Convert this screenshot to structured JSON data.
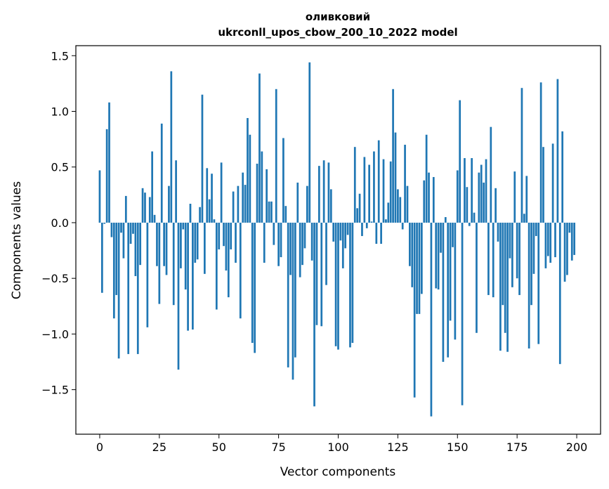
{
  "chart_data": {
    "type": "bar",
    "title": "оливковий",
    "subtitle": "ukrconll_upos_cbow_200_10_2022 model",
    "xlabel": "Vector components",
    "ylabel": "Components values",
    "xlim": [
      -10,
      210
    ],
    "ylim": [
      -1.9,
      1.59
    ],
    "xticks": [
      0,
      25,
      50,
      75,
      100,
      125,
      150,
      175,
      200
    ],
    "xtick_labels": [
      "0",
      "25",
      "50",
      "75",
      "100",
      "125",
      "150",
      "175",
      "200"
    ],
    "yticks": [
      -1.5,
      -1.0,
      -0.5,
      0.0,
      0.5,
      1.0,
      1.5
    ],
    "ytick_labels": [
      "−1.5",
      "−1.0",
      "−0.5",
      "0.0",
      "0.5",
      "1.0",
      "1.5"
    ],
    "grid": false,
    "bar_color": "#1f77b4",
    "values": [
      0.47,
      -0.63,
      -0.01,
      0.84,
      1.08,
      -0.13,
      -0.86,
      -0.65,
      -1.22,
      -0.09,
      -0.32,
      0.24,
      -1.18,
      -0.19,
      -0.1,
      -0.48,
      -1.18,
      -0.38,
      0.31,
      0.27,
      -0.94,
      0.23,
      0.64,
      0.07,
      -0.39,
      -0.73,
      0.89,
      -0.39,
      -0.47,
      0.33,
      1.36,
      -0.74,
      0.56,
      -1.32,
      -0.41,
      -0.06,
      -0.6,
      -0.97,
      0.17,
      -0.96,
      -0.36,
      -0.33,
      0.14,
      1.15,
      -0.46,
      0.49,
      0.21,
      0.44,
      0.03,
      -0.78,
      -0.24,
      0.54,
      -0.21,
      -0.43,
      -0.67,
      -0.24,
      0.28,
      -0.36,
      0.33,
      -0.86,
      0.45,
      0.34,
      0.94,
      0.79,
      -1.08,
      -1.17,
      0.53,
      1.34,
      0.64,
      -0.36,
      0.48,
      0.19,
      0.19,
      -0.2,
      1.2,
      -0.39,
      -0.31,
      0.76,
      0.15,
      -1.3,
      -0.47,
      -1.41,
      -1.21,
      0.36,
      -0.49,
      -0.38,
      -0.23,
      0.33,
      1.44,
      -0.34,
      -1.65,
      -0.92,
      0.51,
      -0.93,
      0.56,
      -0.56,
      0.54,
      0.3,
      -0.17,
      -1.11,
      -1.14,
      -0.16,
      -0.41,
      -0.23,
      -0.11,
      -1.12,
      -1.08,
      0.68,
      0.13,
      0.26,
      -0.12,
      0.59,
      -0.05,
      0.52,
      0.01,
      0.64,
      -0.19,
      0.74,
      -0.19,
      0.57,
      0.03,
      0.18,
      0.55,
      1.2,
      0.81,
      0.3,
      0.23,
      -0.06,
      0.7,
      0.33,
      -0.39,
      -0.58,
      -1.57,
      -0.82,
      -0.82,
      -0.64,
      0.38,
      0.79,
      0.45,
      -1.74,
      0.41,
      -0.59,
      -0.6,
      -0.27,
      -1.25,
      0.05,
      -1.21,
      -0.88,
      -0.22,
      -1.05,
      0.47,
      1.1,
      -1.64,
      0.58,
      0.32,
      -0.03,
      0.58,
      0.09,
      -0.99,
      0.45,
      0.52,
      0.36,
      0.57,
      -0.65,
      0.86,
      -0.67,
      0.31,
      -0.17,
      -1.15,
      -0.74,
      -0.99,
      -1.16,
      -0.32,
      -0.58,
      0.46,
      -0.5,
      -0.65,
      1.21,
      0.08,
      0.42,
      -1.13,
      -0.74,
      -0.46,
      -0.12,
      -1.09,
      1.26,
      0.68,
      -0.41,
      -0.3,
      -0.36,
      0.71,
      -0.31,
      1.29,
      -1.27,
      0.82,
      -0.53,
      -0.47,
      -0.09,
      -0.34,
      -0.29
    ]
  }
}
